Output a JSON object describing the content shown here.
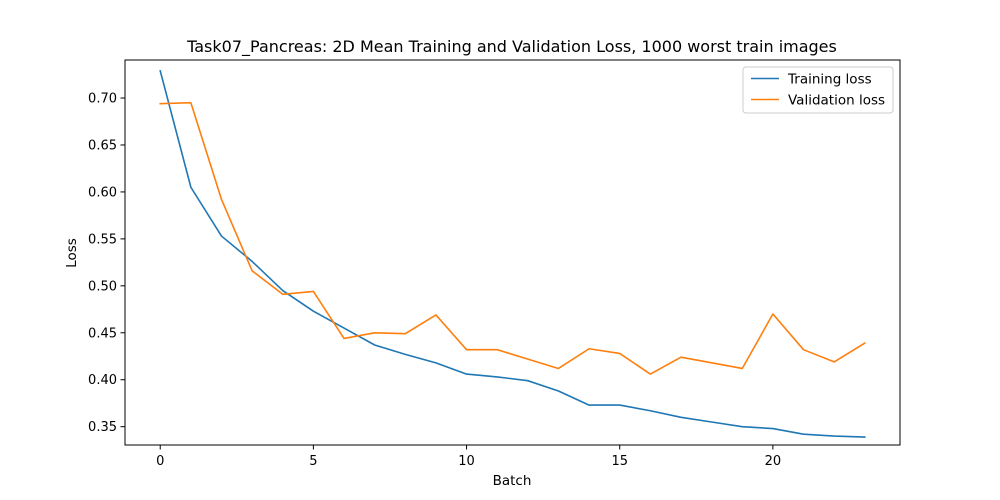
{
  "chart_data": {
    "type": "line",
    "title": "Task07_Pancreas: 2D Mean Training and Validation Loss, 1000 worst train images",
    "xlabel": "Batch",
    "ylabel": "Loss",
    "xlim": [
      -1.15,
      24.15
    ],
    "ylim": [
      0.3305,
      0.7405
    ],
    "x_ticks": [
      0,
      5,
      10,
      15,
      20
    ],
    "x_tick_labels": [
      "0",
      "5",
      "10",
      "15",
      "20"
    ],
    "y_ticks": [
      0.35,
      0.4,
      0.45,
      0.5,
      0.55,
      0.6,
      0.65,
      0.7
    ],
    "y_tick_labels": [
      "0.35",
      "0.40",
      "0.45",
      "0.50",
      "0.55",
      "0.60",
      "0.65",
      "0.70"
    ],
    "grid": false,
    "legend_position": "upper-right",
    "x": [
      0,
      1,
      2,
      3,
      4,
      5,
      6,
      7,
      8,
      9,
      10,
      11,
      12,
      13,
      14,
      15,
      16,
      17,
      18,
      19,
      20,
      21,
      22,
      23
    ],
    "series": [
      {
        "name": "Training loss",
        "color": "#1f77b4",
        "values": [
          0.729,
          0.605,
          0.553,
          0.526,
          0.495,
          0.473,
          0.455,
          0.437,
          0.427,
          0.418,
          0.406,
          0.403,
          0.399,
          0.388,
          0.373,
          0.373,
          0.367,
          0.36,
          0.355,
          0.35,
          0.348,
          0.342,
          0.34,
          0.339
        ]
      },
      {
        "name": "Validation loss",
        "color": "#ff7f0e",
        "values": [
          0.694,
          0.695,
          0.592,
          0.516,
          0.491,
          0.494,
          0.444,
          0.45,
          0.449,
          0.469,
          0.432,
          0.432,
          0.422,
          0.412,
          0.433,
          0.428,
          0.406,
          0.424,
          0.418,
          0.412,
          0.47,
          0.432,
          0.419,
          0.439
        ]
      }
    ]
  }
}
